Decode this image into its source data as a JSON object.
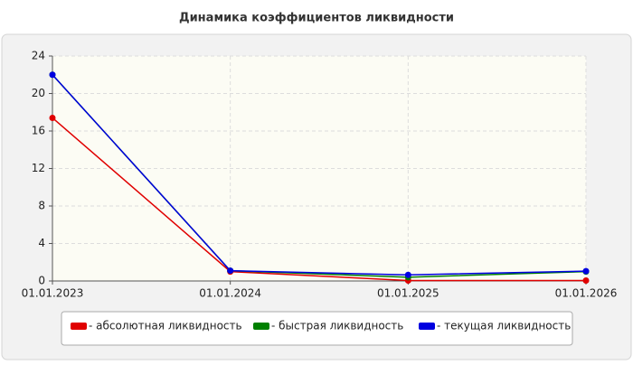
{
  "chart_data": {
    "type": "line",
    "title": "Динамика коэффициентов ликвидности",
    "categories": [
      "01.01.2023",
      "01.01.2024",
      "01.01.2025",
      "01.01.2026"
    ],
    "series": [
      {
        "name": "- абсолютная ликвидность",
        "color": "#e00000",
        "values": [
          17.4,
          1.0,
          0.05,
          0.05
        ]
      },
      {
        "name": "- быстрая ликвидность",
        "color": "#008000",
        "values": [
          22.0,
          1.1,
          0.4,
          1.0
        ]
      },
      {
        "name": "- текущая ликвидность",
        "color": "#0000e0",
        "values": [
          22.0,
          1.1,
          0.65,
          1.05
        ]
      }
    ],
    "ylim": [
      0,
      24
    ],
    "yticks": [
      0,
      4,
      8,
      12,
      16,
      20,
      24
    ],
    "grid": true
  }
}
